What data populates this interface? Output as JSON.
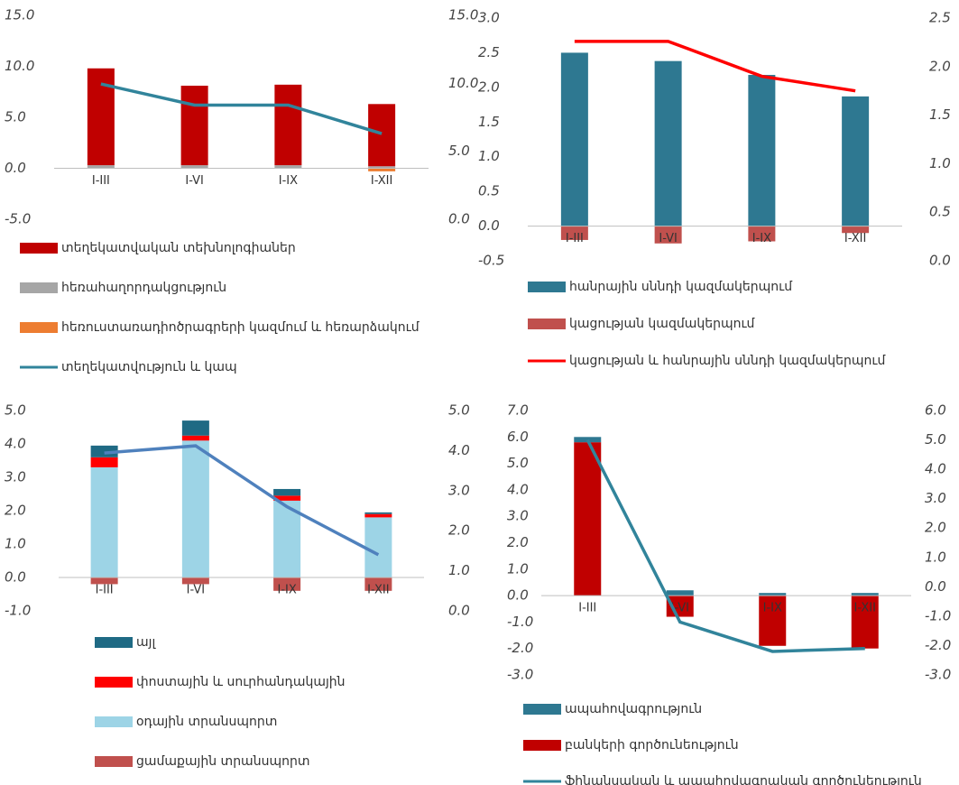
{
  "chart_data": [
    {
      "type": "bar",
      "categories": [
        "I-III",
        "I-VI",
        "I-IX",
        "I-XII"
      ],
      "ylim": [
        -5,
        15
      ],
      "yticks": [
        {
          "value": -5,
          "label": "-5.0"
        },
        {
          "value": 0,
          "label": "0.0"
        },
        {
          "value": 5,
          "label": "5.0"
        },
        {
          "value": 10,
          "label": "10.0"
        },
        {
          "value": 15,
          "label": "15.0"
        }
      ],
      "y2lim": [
        0,
        15
      ],
      "y2ticks": [
        {
          "value": 0,
          "label": "0.0"
        },
        {
          "value": 5,
          "label": "5.0"
        },
        {
          "value": 10,
          "label": "10.0"
        },
        {
          "value": 15,
          "label": "15.0"
        }
      ],
      "series": [
        {
          "name": "հեռահաղորդակցություն",
          "color": "#a6a6a6",
          "values": [
            0.3,
            0.3,
            0.3,
            0.2
          ]
        },
        {
          "name": "տեղեկատվական տեխնոլոգիաներ",
          "color": "#c00000",
          "values": [
            9.5,
            7.8,
            7.9,
            6.1
          ]
        },
        {
          "name": "հեռուստառադիոծրագրերի կազմում և հեռարձակում",
          "color": "#ed7d31",
          "values": [
            0.0,
            0.0,
            0.0,
            -0.3
          ]
        },
        {
          "name": "տեղեկատվություն և կապ",
          "color": "#31849b",
          "type": "line",
          "axis": "y2",
          "values": [
            9.95,
            8.4,
            8.4,
            6.3
          ]
        }
      ],
      "legend_order": [
        1,
        0,
        2,
        3
      ]
    },
    {
      "type": "bar",
      "categories": [
        "I-III",
        "I-VI",
        "I-IX",
        "I-XII"
      ],
      "ylim": [
        -0.5,
        3
      ],
      "yticks": [
        {
          "value": -0.5,
          "label": "-0.5"
        },
        {
          "value": 0,
          "label": "0.0"
        },
        {
          "value": 0.5,
          "label": "0.5"
        },
        {
          "value": 1,
          "label": "1.0"
        },
        {
          "value": 1.5,
          "label": "1.5"
        },
        {
          "value": 2,
          "label": "2.0"
        },
        {
          "value": 2.5,
          "label": "2.5"
        },
        {
          "value": 3,
          "label": "3.0"
        }
      ],
      "y2lim": [
        0,
        2.5
      ],
      "y2ticks": [
        {
          "value": 0,
          "label": "0.0"
        },
        {
          "value": 0.5,
          "label": "0.5"
        },
        {
          "value": 1,
          "label": "1.0"
        },
        {
          "value": 1.5,
          "label": "1.5"
        },
        {
          "value": 2,
          "label": "2.0"
        },
        {
          "value": 2.5,
          "label": "2.5"
        }
      ],
      "series": [
        {
          "name": "հանրային սննդի կազմակերպում",
          "color": "#2e7891",
          "values": [
            2.5,
            2.38,
            2.18,
            1.87
          ]
        },
        {
          "name": "կացության կազմակերպում",
          "color": "#c0504d",
          "values": [
            -0.2,
            -0.25,
            -0.22,
            -0.1
          ]
        },
        {
          "name": "կացության և հանրային սննդի կազմակերպում",
          "color": "#ff0000",
          "type": "line",
          "axis": "y2",
          "values": [
            2.26,
            2.26,
            1.9,
            1.75
          ]
        }
      ],
      "legend_order": [
        0,
        1,
        2
      ]
    },
    {
      "type": "bar",
      "categories": [
        "I-III",
        "I-VI",
        "I-IX",
        "I-XII"
      ],
      "ylim": [
        -1,
        5
      ],
      "yticks": [
        {
          "value": -1,
          "label": "-1.0"
        },
        {
          "value": 0,
          "label": "0.0"
        },
        {
          "value": 1,
          "label": "1.0"
        },
        {
          "value": 2,
          "label": "2.0"
        },
        {
          "value": 3,
          "label": "3.0"
        },
        {
          "value": 4,
          "label": "4.0"
        },
        {
          "value": 5,
          "label": "5.0"
        }
      ],
      "y2lim": [
        0,
        5
      ],
      "y2ticks": [
        {
          "value": 0,
          "label": "0.0"
        },
        {
          "value": 1,
          "label": "1.0"
        },
        {
          "value": 2,
          "label": "2.0"
        },
        {
          "value": 3,
          "label": "3.0"
        },
        {
          "value": 4,
          "label": "4.0"
        },
        {
          "value": 5,
          "label": "5.0"
        }
      ],
      "series": [
        {
          "name": "օդային տրանսպորտ",
          "color": "#9dd4e6",
          "values": [
            3.3,
            4.1,
            2.3,
            1.8
          ]
        },
        {
          "name": "փոստային և սուրհանդակային",
          "color": "#ff0000",
          "values": [
            0.3,
            0.15,
            0.15,
            0.1
          ]
        },
        {
          "name": "այլ",
          "color": "#1f6a84",
          "values": [
            0.35,
            0.45,
            0.2,
            0.05
          ]
        },
        {
          "name": "ցամաքային տրանսպորտ",
          "color": "#c0504d",
          "values": [
            -0.2,
            -0.2,
            -0.4,
            -0.4
          ]
        },
        {
          "color": "#4f81bd",
          "type": "line",
          "axis": "y2",
          "values": [
            3.94,
            4.12,
            2.6,
            1.4
          ]
        }
      ],
      "legend_order": [
        2,
        1,
        0,
        3
      ]
    },
    {
      "type": "bar",
      "categories": [
        "I-III",
        "I-VI",
        "I-IX",
        "I-XII"
      ],
      "ylim": [
        -3,
        7
      ],
      "yticks": [
        {
          "value": -3,
          "label": "-3.0"
        },
        {
          "value": -2,
          "label": "-2.0"
        },
        {
          "value": -1,
          "label": "-1.0"
        },
        {
          "value": 0,
          "label": "0.0"
        },
        {
          "value": 1,
          "label": "1.0"
        },
        {
          "value": 2,
          "label": "2.0"
        },
        {
          "value": 3,
          "label": "3.0"
        },
        {
          "value": 4,
          "label": "4.0"
        },
        {
          "value": 5,
          "label": "5.0"
        },
        {
          "value": 6,
          "label": "6.0"
        },
        {
          "value": 7,
          "label": "7.0"
        }
      ],
      "y2lim": [
        -3,
        6
      ],
      "y2ticks": [
        {
          "value": -3,
          "label": "-3.0"
        },
        {
          "value": -2,
          "label": "-2.0"
        },
        {
          "value": -1,
          "label": "-1.0"
        },
        {
          "value": 0,
          "label": "0.0"
        },
        {
          "value": 1,
          "label": "1.0"
        },
        {
          "value": 2,
          "label": "2.0"
        },
        {
          "value": 3,
          "label": "3.0"
        },
        {
          "value": 4,
          "label": "4.0"
        },
        {
          "value": 5,
          "label": "5.0"
        },
        {
          "value": 6,
          "label": "6.0"
        }
      ],
      "series": [
        {
          "name": "բանկերի գործունեություն",
          "color": "#c00000",
          "values": [
            5.8,
            -0.8,
            -1.9,
            -2.0
          ]
        },
        {
          "name": "ապահովագրություն",
          "color": "#2e7891",
          "values": [
            0.2,
            0.2,
            0.1,
            0.1
          ]
        },
        {
          "name": "ֆինանսական և ապահովագրական գործունեություն",
          "color": "#31849b",
          "type": "line",
          "axis": "y2",
          "values": [
            5.0,
            -1.2,
            -2.2,
            -2.1
          ]
        }
      ],
      "legend_order": [
        1,
        0,
        2
      ]
    }
  ]
}
